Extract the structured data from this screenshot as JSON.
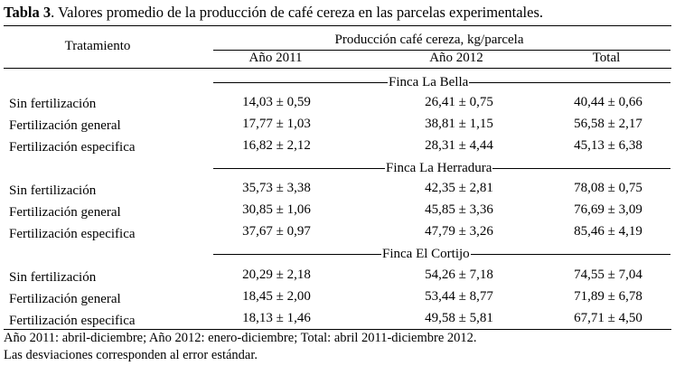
{
  "caption": {
    "label": "Tabla 3",
    "text": ". Valores promedio de la producción de café cereza en las parcelas experimentales."
  },
  "header": {
    "tratamiento": "Tratamiento",
    "group": "Producción café cereza, kg/parcela",
    "col_2011": "Año 2011",
    "col_2012": "Año 2012",
    "col_total": "Total"
  },
  "sections": [
    {
      "title": "Finca La Bella",
      "rows": [
        {
          "treatment": "Sin fertilización",
          "y2011": "14,03 ± 0,59",
          "y2012": "26,41 ± 0,75",
          "total": "40,44 ± 0,66"
        },
        {
          "treatment": "Fertilización general",
          "y2011": "17,77 ± 1,03",
          "y2012": "38,81 ± 1,15",
          "total": "56,58 ± 2,17"
        },
        {
          "treatment": "Fertilización especifica",
          "y2011": "16,82 ± 2,12",
          "y2012": "28,31 ± 4,44",
          "total": "45,13 ± 6,38"
        }
      ]
    },
    {
      "title": "Finca La Herradura",
      "rows": [
        {
          "treatment": "Sin fertilización",
          "y2011": "35,73 ± 3,38",
          "y2012": "42,35 ± 2,81",
          "total": "78,08 ± 0,75"
        },
        {
          "treatment": "Fertilización general",
          "y2011": "30,85 ± 1,06",
          "y2012": "45,85 ± 3,36",
          "total": "76,69 ± 3,09"
        },
        {
          "treatment": "Fertilización especifica",
          "y2011": "37,67 ± 0,97",
          "y2012": "47,79 ± 3,26",
          "total": "85,46 ± 4,19"
        }
      ]
    },
    {
      "title": "Finca El Cortijo",
      "rows": [
        {
          "treatment": "Sin fertilización",
          "y2011": "20,29 ± 2,18",
          "y2012": "54,26 ± 7,18",
          "total": "74,55 ± 7,04"
        },
        {
          "treatment": "Fertilización general",
          "y2011": "18,45 ± 2,00",
          "y2012": "53,44 ± 8,77",
          "total": "71,89 ± 6,78"
        },
        {
          "treatment": "Fertilización especifica",
          "y2011": "18,13 ± 1,46",
          "y2012": "49,58 ± 5,81",
          "total": "67,71 ± 4,50"
        }
      ]
    }
  ],
  "notes": [
    "Año 2011: abril-diciembre; Año 2012: enero-diciembre; Total: abril 2011-diciembre 2012.",
    "Las desviaciones corresponden al error estándar."
  ]
}
